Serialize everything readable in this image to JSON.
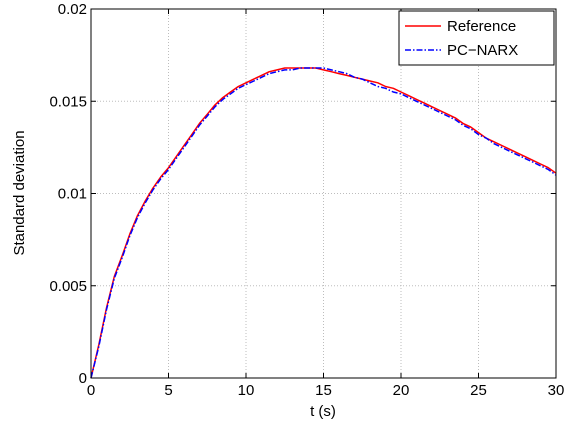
{
  "chart_data": {
    "type": "line",
    "title": "",
    "xlabel": "t (s)",
    "ylabel": "Standard deviation",
    "xlim": [
      0,
      30
    ],
    "ylim": [
      0,
      0.02
    ],
    "x_ticks": [
      0,
      5,
      10,
      15,
      20,
      25,
      30
    ],
    "x_tick_labels": [
      "0",
      "5",
      "10",
      "15",
      "20",
      "25",
      "30"
    ],
    "y_ticks": [
      0,
      0.005,
      0.01,
      0.015,
      0.02
    ],
    "y_tick_labels": [
      "0",
      "0.005",
      "0.01",
      "0.015",
      "0.02"
    ],
    "grid": true,
    "legend_position": "top-right",
    "series": [
      {
        "name": "Reference",
        "color": "#ff0000",
        "line_style": "solid",
        "x": [
          0,
          0.5,
          1,
          1.5,
          2,
          2.5,
          3,
          3.5,
          4,
          4.5,
          5,
          5.5,
          6,
          6.5,
          7,
          7.5,
          8,
          8.5,
          9,
          9.5,
          10,
          10.5,
          11,
          11.5,
          12,
          12.5,
          13,
          13.5,
          14,
          14.5,
          15,
          15.5,
          16,
          16.5,
          17,
          17.5,
          18,
          18.5,
          19,
          19.5,
          20,
          20.5,
          21,
          21.5,
          22,
          22.5,
          23,
          23.5,
          24,
          24.5,
          25,
          25.5,
          26,
          26.5,
          27,
          27.5,
          28,
          28.5,
          29,
          29.5,
          30
        ],
        "y": [
          0,
          0.0018,
          0.0038,
          0.0055,
          0.0066,
          0.0078,
          0.0088,
          0.0096,
          0.0103,
          0.0109,
          0.0114,
          0.012,
          0.0126,
          0.0132,
          0.0138,
          0.0143,
          0.0148,
          0.0152,
          0.0155,
          0.0158,
          0.016,
          0.0162,
          0.0164,
          0.0166,
          0.0167,
          0.0168,
          0.0168,
          0.0168,
          0.0168,
          0.0168,
          0.0167,
          0.0166,
          0.0165,
          0.0164,
          0.0163,
          0.0162,
          0.0161,
          0.016,
          0.0158,
          0.0157,
          0.0155,
          0.0153,
          0.0151,
          0.0149,
          0.0147,
          0.0145,
          0.0143,
          0.0141,
          0.0138,
          0.0136,
          0.0133,
          0.013,
          0.0128,
          0.0126,
          0.0124,
          0.0122,
          0.012,
          0.0118,
          0.0116,
          0.0114,
          0.0111
        ]
      },
      {
        "name": "PC−NARX",
        "color": "#0000ff",
        "line_style": "dash-dot",
        "x": [
          0,
          0.5,
          1,
          1.5,
          2,
          2.5,
          3,
          3.5,
          4,
          4.5,
          5,
          5.5,
          6,
          6.5,
          7,
          7.5,
          8,
          8.5,
          9,
          9.5,
          10,
          10.5,
          11,
          11.5,
          12,
          12.5,
          13,
          13.5,
          14,
          14.5,
          15,
          15.5,
          16,
          16.5,
          17,
          17.5,
          18,
          18.5,
          19,
          19.5,
          20,
          20.5,
          21,
          21.5,
          22,
          22.5,
          23,
          23.5,
          24,
          24.5,
          25,
          25.5,
          26,
          26.5,
          27,
          27.5,
          28,
          28.5,
          29,
          29.5,
          30
        ],
        "y": [
          0,
          0.0017,
          0.0037,
          0.0054,
          0.0065,
          0.0077,
          0.0087,
          0.0095,
          0.0102,
          0.0108,
          0.0113,
          0.0119,
          0.0125,
          0.0131,
          0.0137,
          0.0142,
          0.0147,
          0.0151,
          0.0154,
          0.0157,
          0.0159,
          0.0161,
          0.0163,
          0.0165,
          0.0166,
          0.0167,
          0.0167,
          0.0168,
          0.0168,
          0.0168,
          0.0168,
          0.0167,
          0.0166,
          0.0165,
          0.0163,
          0.0162,
          0.016,
          0.0158,
          0.0157,
          0.0155,
          0.0154,
          0.0152,
          0.015,
          0.0148,
          0.0146,
          0.0144,
          0.0142,
          0.014,
          0.0137,
          0.0135,
          0.0132,
          0.013,
          0.0127,
          0.0125,
          0.0123,
          0.0121,
          0.0119,
          0.0117,
          0.0115,
          0.0113,
          0.011
        ]
      }
    ]
  }
}
